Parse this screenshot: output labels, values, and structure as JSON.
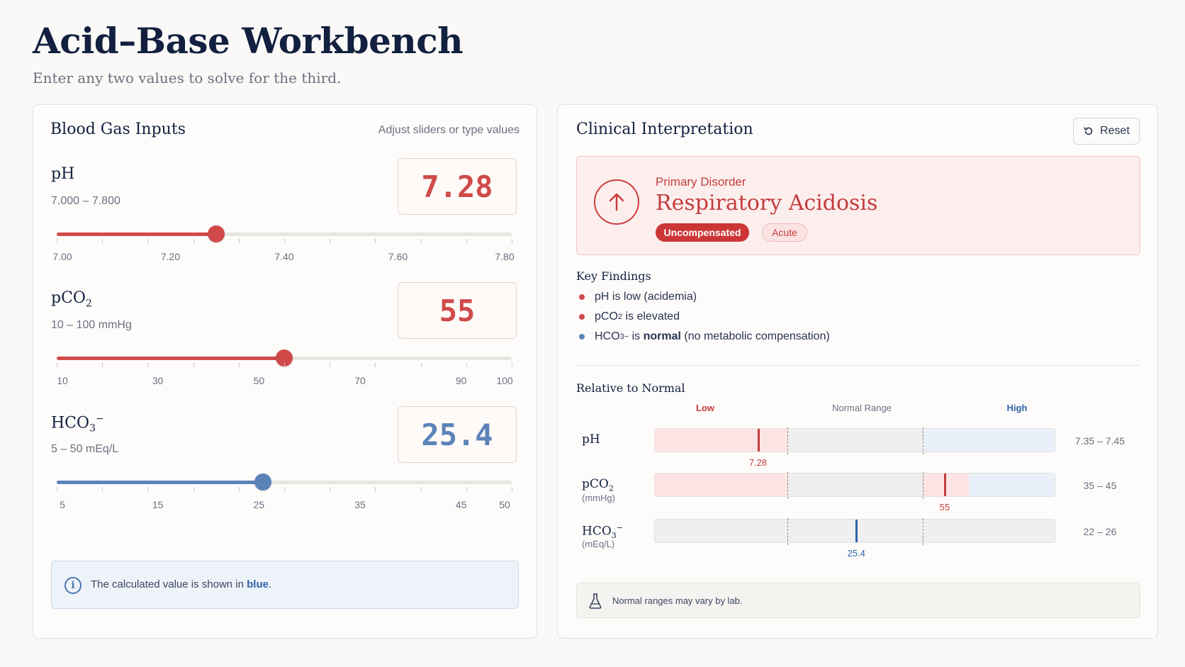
{
  "header": {
    "title": "Acid–Base Workbench",
    "subtitle": "Enter any two values to solve for the third."
  },
  "inputs_panel": {
    "title": "Blood Gas Inputs",
    "hint": "Adjust sliders or type values",
    "params": [
      {
        "name_main": "pH",
        "name_sub": "",
        "name_sup": "",
        "range": "7.000 – 7.800",
        "value": "7.28",
        "state": "entered",
        "color": "#d04a4a",
        "slider_min": 7.0,
        "slider_max": 7.8,
        "slider_value": 7.28,
        "ticks": [
          "7.00",
          "7.20",
          "7.40",
          "7.60",
          "7.80"
        ]
      },
      {
        "name_main": "pCO",
        "name_sub": "2",
        "name_sup": "",
        "range": "10 – 100 mmHg",
        "value": "55",
        "state": "entered",
        "color": "#d04a4a",
        "slider_min": 10,
        "slider_max": 100,
        "slider_value": 55,
        "ticks": [
          "10",
          "30",
          "50",
          "70",
          "90",
          "100"
        ]
      },
      {
        "name_main": "HCO",
        "name_sub": "3",
        "name_sup": "−",
        "range": "5 – 50 mEq/L",
        "value": "25.4",
        "state": "calculated",
        "color": "#5b83b8",
        "slider_min": 5,
        "slider_max": 50,
        "slider_value": 25.4,
        "ticks": [
          "5",
          "15",
          "25",
          "35",
          "45",
          "50"
        ]
      }
    ],
    "note": {
      "icon": "info-icon",
      "text_before": "The calculated value is shown in",
      "accent": "blue",
      "text_after": "."
    }
  },
  "interpretation": {
    "title": "Clinical Interpretation",
    "reset_label": "Reset",
    "reset_icon": "reset-icon",
    "primary": {
      "label": "Primary Disorder",
      "name": "Respiratory Acidosis",
      "icon": "arrow-up-icon",
      "badges": [
        "Uncompensated",
        "Acute"
      ]
    },
    "findings_title": "Key Findings",
    "findings": [
      {
        "dot": "red",
        "pre": "pH",
        "sub": "",
        "sup": "",
        "mid": " is low ",
        "bold": "",
        "post": "(acidemia)"
      },
      {
        "dot": "red",
        "pre": "pCO",
        "sub": "2",
        "sup": "",
        "mid": " is elevated",
        "bold": "",
        "post": ""
      },
      {
        "dot": "blue",
        "pre": "HCO",
        "sub": "3",
        "sup": "−",
        "mid": " is ",
        "bold": "normal",
        "post": " (no metabolic compensation)"
      }
    ],
    "relative_title": "Relative to Normal",
    "columns": {
      "low": "Low",
      "normal": "Normal Range",
      "high": "High"
    },
    "rows": [
      {
        "label_main": "pH",
        "label_sub": "",
        "label_sup": "",
        "unit": "",
        "marker": "7.28",
        "normal": "7.35 – 7.45",
        "status": "low"
      },
      {
        "label_main": "pCO",
        "label_sub": "2",
        "label_sup": "",
        "unit": "(mmHg)",
        "marker": "55",
        "normal": "35 – 45",
        "status": "high"
      },
      {
        "label_main": "HCO",
        "label_sub": "3",
        "label_sup": "−",
        "unit": "(mEq/L)",
        "marker": "25.4",
        "normal": "22 – 26",
        "status": "normal"
      }
    ],
    "lab_note": "Normal ranges may vary by lab.",
    "lab_icon": "flask-icon"
  }
}
